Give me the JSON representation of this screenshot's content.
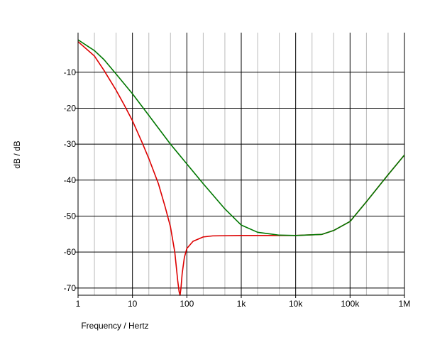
{
  "chart_data": {
    "type": "line",
    "xscale": "log",
    "xlim": [
      1,
      1000000
    ],
    "ylim": [
      -72,
      1
    ],
    "xlabel": "Frequency / Hertz",
    "ylabel": "dB / dB",
    "x_ticks": [
      {
        "value": 1,
        "label": "1"
      },
      {
        "value": 10,
        "label": "10"
      },
      {
        "value": 100,
        "label": "100"
      },
      {
        "value": 1000,
        "label": "1k"
      },
      {
        "value": 10000,
        "label": "10k"
      },
      {
        "value": 100000,
        "label": "100k"
      },
      {
        "value": 1000000,
        "label": "1M"
      }
    ],
    "y_ticks": [
      {
        "value": -10,
        "label": "-10"
      },
      {
        "value": -20,
        "label": "-20"
      },
      {
        "value": -30,
        "label": "-30"
      },
      {
        "value": -40,
        "label": "-40"
      },
      {
        "value": -50,
        "label": "-50"
      },
      {
        "value": -60,
        "label": "-60"
      },
      {
        "value": -70,
        "label": "-70"
      }
    ],
    "grid": true,
    "series": [
      {
        "color": "#dd0000",
        "points": [
          [
            1,
            -1.5
          ],
          [
            2,
            -5.5
          ],
          [
            3,
            -9.5
          ],
          [
            5,
            -15
          ],
          [
            7,
            -19
          ],
          [
            10,
            -23.5
          ],
          [
            15,
            -29.5
          ],
          [
            20,
            -34
          ],
          [
            30,
            -41
          ],
          [
            40,
            -47.5
          ],
          [
            50,
            -53
          ],
          [
            60,
            -60
          ],
          [
            68,
            -68
          ],
          [
            72,
            -71
          ],
          [
            75,
            -72
          ],
          [
            78,
            -70
          ],
          [
            82,
            -66
          ],
          [
            90,
            -61.5
          ],
          [
            100,
            -59
          ],
          [
            130,
            -57
          ],
          [
            200,
            -55.8
          ],
          [
            300,
            -55.5
          ],
          [
            1000,
            -55.4
          ],
          [
            10000,
            -55.4
          ],
          [
            30000,
            -55.1
          ],
          [
            50000,
            -54
          ],
          [
            100000,
            -51.5
          ],
          [
            200000,
            -46
          ],
          [
            500000,
            -38.5
          ],
          [
            1000000,
            -33
          ]
        ]
      },
      {
        "color": "#007700",
        "points": [
          [
            1,
            -1
          ],
          [
            2,
            -4
          ],
          [
            3,
            -6.5
          ],
          [
            5,
            -10.5
          ],
          [
            10,
            -16
          ],
          [
            20,
            -22
          ],
          [
            50,
            -30
          ],
          [
            100,
            -35.5
          ],
          [
            200,
            -41
          ],
          [
            500,
            -48
          ],
          [
            1000,
            -52.5
          ],
          [
            2000,
            -54.5
          ],
          [
            5000,
            -55.3
          ],
          [
            10000,
            -55.4
          ],
          [
            30000,
            -55.1
          ],
          [
            50000,
            -54
          ],
          [
            100000,
            -51.5
          ],
          [
            200000,
            -46
          ],
          [
            500000,
            -38.5
          ],
          [
            1000000,
            -33
          ]
        ]
      }
    ],
    "colors": {
      "major_grid": "#000000",
      "minor_grid": "#bbbbbb",
      "axis": "#000000"
    }
  }
}
